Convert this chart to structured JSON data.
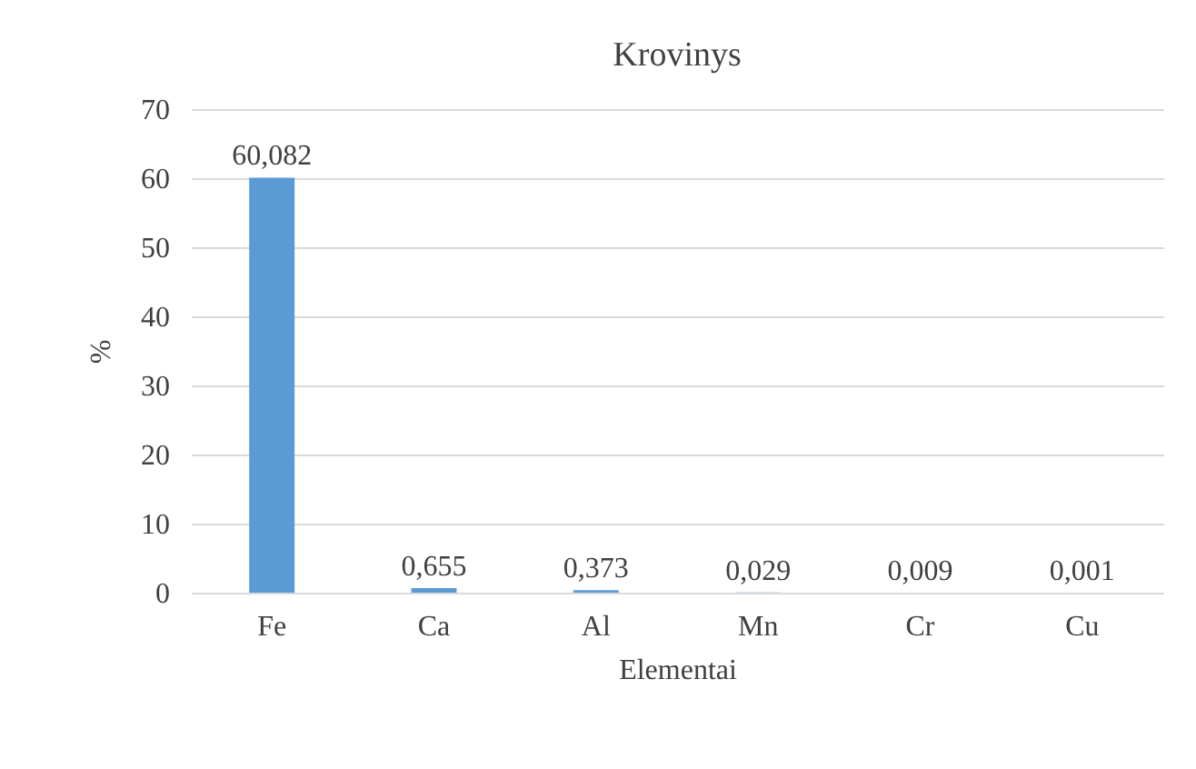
{
  "chart_data": {
    "type": "bar",
    "title": "Krovinys",
    "xlabel": "Elementai",
    "ylabel": "%",
    "categories": [
      "Fe",
      "Ca",
      "Al",
      "Mn",
      "Cr",
      "Cu"
    ],
    "values": [
      60.082,
      0.655,
      0.373,
      0.029,
      0.009,
      0.001
    ],
    "value_labels": [
      "60,082",
      "0,655",
      "0,373",
      "0,029",
      "0,009",
      "0,001"
    ],
    "color": "#5b9bd5",
    "ylim": [
      0,
      70
    ],
    "yticks": [
      0,
      10,
      20,
      30,
      40,
      50,
      60,
      70
    ],
    "grid": "y"
  }
}
